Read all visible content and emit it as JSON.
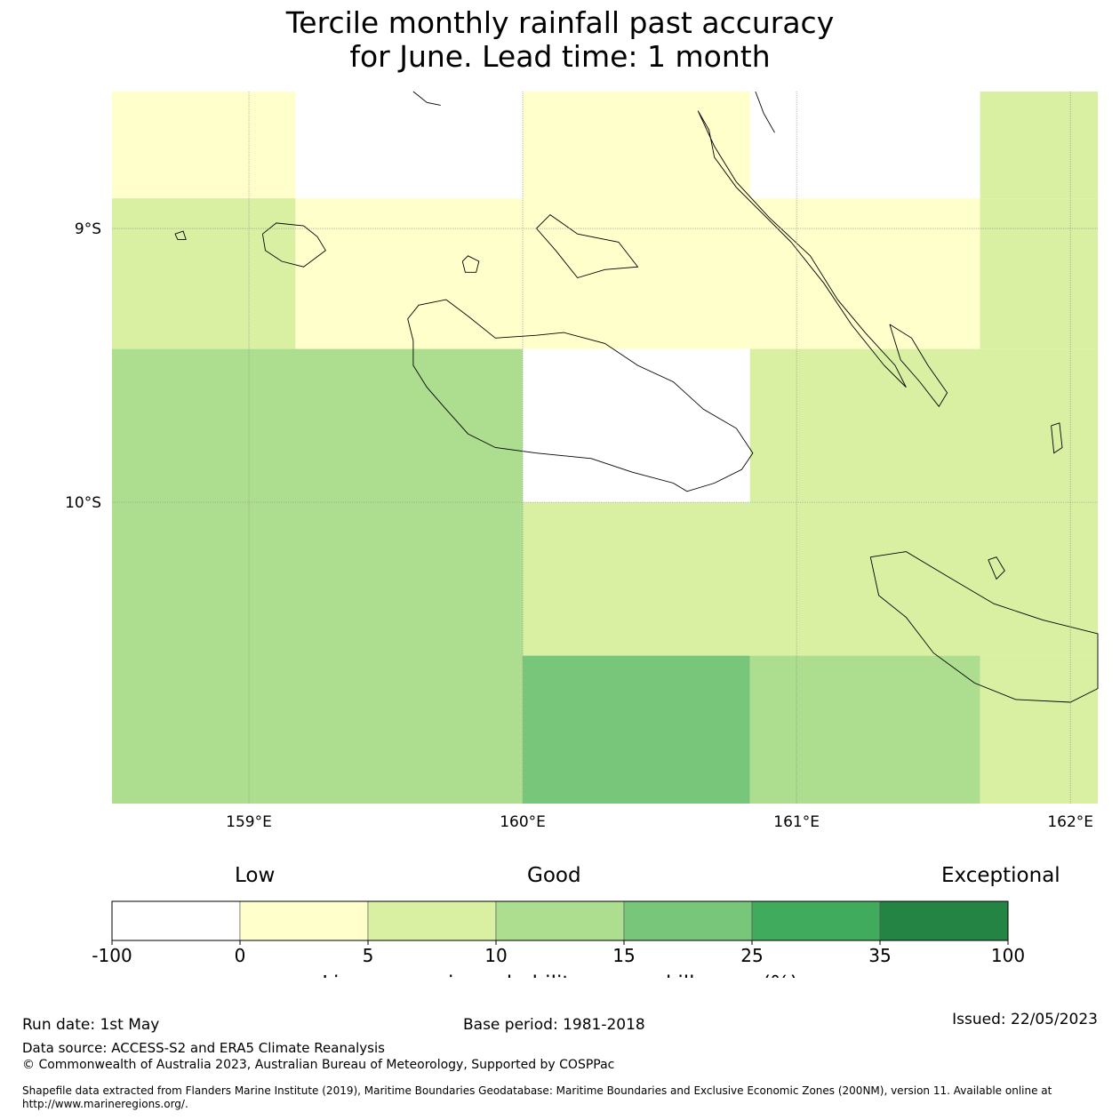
{
  "title_line1": "Tercile monthly rainfall past accuracy",
  "title_line2": "for June. Lead time: 1 month",
  "map": {
    "lon_range": [
      158.5,
      162.1
    ],
    "lat_range": [
      -11.1,
      -8.5
    ],
    "lon_ticks": [
      {
        "value": 159,
        "label": "159°E"
      },
      {
        "value": 160,
        "label": "160°E"
      },
      {
        "value": 161,
        "label": "161°E"
      },
      {
        "value": 162,
        "label": "162°E"
      }
    ],
    "lat_ticks": [
      {
        "value": -9,
        "label": "9°S"
      },
      {
        "value": -10,
        "label": "10°S"
      }
    ],
    "grid_cells": [
      {
        "lon0": 158.5,
        "lon1": 159.17,
        "lat0": -8.5,
        "lat1": -8.89,
        "class": 1
      },
      {
        "lon0": 159.17,
        "lon1": 160.0,
        "lat0": -8.5,
        "lat1": -8.89,
        "class": 0
      },
      {
        "lon0": 160.0,
        "lon1": 160.83,
        "lat0": -8.5,
        "lat1": -8.89,
        "class": 1
      },
      {
        "lon0": 160.83,
        "lon1": 161.67,
        "lat0": -8.5,
        "lat1": -8.89,
        "class": 0
      },
      {
        "lon0": 161.67,
        "lon1": 162.1,
        "lat0": -8.5,
        "lat1": -8.89,
        "class": 2
      },
      {
        "lon0": 158.5,
        "lon1": 159.17,
        "lat0": -8.89,
        "lat1": -9.44,
        "class": 2
      },
      {
        "lon0": 159.17,
        "lon1": 161.67,
        "lat0": -8.89,
        "lat1": -9.44,
        "class": 1
      },
      {
        "lon0": 161.67,
        "lon1": 162.1,
        "lat0": -8.89,
        "lat1": -9.44,
        "class": 2
      },
      {
        "lon0": 158.5,
        "lon1": 160.0,
        "lat0": -9.44,
        "lat1": -10.0,
        "class": 3
      },
      {
        "lon0": 160.0,
        "lon1": 160.83,
        "lat0": -9.44,
        "lat1": -10.0,
        "class": 0
      },
      {
        "lon0": 160.83,
        "lon1": 162.1,
        "lat0": -9.44,
        "lat1": -10.0,
        "class": 2
      },
      {
        "lon0": 158.5,
        "lon1": 160.0,
        "lat0": -10.0,
        "lat1": -11.1,
        "class": 3
      },
      {
        "lon0": 160.0,
        "lon1": 162.1,
        "lat0": -10.0,
        "lat1": -10.56,
        "class": 2
      },
      {
        "lon0": 160.0,
        "lon1": 160.83,
        "lat0": -10.56,
        "lat1": -11.1,
        "class": 4
      },
      {
        "lon0": 160.83,
        "lon1": 161.67,
        "lat0": -10.56,
        "lat1": -11.1,
        "class": 3
      },
      {
        "lon0": 161.67,
        "lon1": 162.1,
        "lat0": -10.56,
        "lat1": -11.1,
        "class": 2
      }
    ],
    "coastlines": [
      [
        [
          159.6,
          -9.41
        ],
        [
          159.58,
          -9.33
        ],
        [
          159.62,
          -9.28
        ],
        [
          159.72,
          -9.26
        ],
        [
          159.8,
          -9.32
        ],
        [
          159.9,
          -9.4
        ],
        [
          160.05,
          -9.39
        ],
        [
          160.15,
          -9.38
        ],
        [
          160.3,
          -9.42
        ],
        [
          160.42,
          -9.5
        ],
        [
          160.55,
          -9.56
        ],
        [
          160.66,
          -9.66
        ],
        [
          160.78,
          -9.73
        ],
        [
          160.84,
          -9.82
        ],
        [
          160.8,
          -9.88
        ],
        [
          160.7,
          -9.93
        ],
        [
          160.6,
          -9.96
        ],
        [
          160.55,
          -9.93
        ],
        [
          160.4,
          -9.89
        ],
        [
          160.25,
          -9.84
        ],
        [
          160.05,
          -9.82
        ],
        [
          159.9,
          -9.8
        ],
        [
          159.8,
          -9.75
        ],
        [
          159.72,
          -9.66
        ],
        [
          159.65,
          -9.58
        ],
        [
          159.6,
          -9.5
        ],
        [
          159.6,
          -9.41
        ]
      ],
      [
        [
          160.05,
          -9.0
        ],
        [
          160.1,
          -8.95
        ],
        [
          160.2,
          -9.02
        ],
        [
          160.35,
          -9.05
        ],
        [
          160.42,
          -9.14
        ],
        [
          160.3,
          -9.15
        ],
        [
          160.2,
          -9.18
        ],
        [
          160.12,
          -9.08
        ],
        [
          160.05,
          -9.0
        ]
      ],
      [
        [
          160.64,
          -8.57
        ],
        [
          160.68,
          -8.64
        ],
        [
          160.7,
          -8.74
        ],
        [
          160.78,
          -8.85
        ],
        [
          160.88,
          -8.95
        ],
        [
          160.98,
          -9.05
        ],
        [
          161.06,
          -9.15
        ],
        [
          161.1,
          -9.2
        ],
        [
          161.2,
          -9.35
        ],
        [
          161.32,
          -9.5
        ],
        [
          161.4,
          -9.58
        ],
        [
          161.36,
          -9.5
        ],
        [
          161.25,
          -9.38
        ],
        [
          161.15,
          -9.26
        ],
        [
          161.05,
          -9.1
        ],
        [
          160.9,
          -8.96
        ],
        [
          160.78,
          -8.83
        ],
        [
          160.7,
          -8.7
        ],
        [
          160.64,
          -8.57
        ]
      ],
      [
        [
          161.34,
          -9.35
        ],
        [
          161.42,
          -9.4
        ],
        [
          161.48,
          -9.5
        ],
        [
          161.55,
          -9.6
        ],
        [
          161.52,
          -9.65
        ],
        [
          161.45,
          -9.56
        ],
        [
          161.38,
          -9.48
        ],
        [
          161.34,
          -9.35
        ]
      ],
      [
        [
          159.05,
          -9.02
        ],
        [
          159.1,
          -8.98
        ],
        [
          159.2,
          -8.99
        ],
        [
          159.25,
          -9.03
        ],
        [
          159.28,
          -9.08
        ],
        [
          159.2,
          -9.14
        ],
        [
          159.12,
          -9.12
        ],
        [
          159.06,
          -9.08
        ],
        [
          159.05,
          -9.02
        ]
      ],
      [
        [
          159.78,
          -9.12
        ],
        [
          159.8,
          -9.1
        ],
        [
          159.84,
          -9.12
        ],
        [
          159.83,
          -9.16
        ],
        [
          159.79,
          -9.16
        ],
        [
          159.78,
          -9.12
        ]
      ],
      [
        [
          158.73,
          -9.02
        ],
        [
          158.76,
          -9.01
        ],
        [
          158.77,
          -9.04
        ],
        [
          158.74,
          -9.04
        ],
        [
          158.73,
          -9.02
        ]
      ],
      [
        [
          161.27,
          -10.2
        ],
        [
          161.4,
          -10.18
        ],
        [
          161.55,
          -10.27
        ],
        [
          161.72,
          -10.37
        ],
        [
          161.9,
          -10.43
        ],
        [
          162.1,
          -10.48
        ],
        [
          162.1,
          -10.68
        ],
        [
          162.0,
          -10.73
        ],
        [
          161.8,
          -10.72
        ],
        [
          161.65,
          -10.66
        ],
        [
          161.5,
          -10.55
        ],
        [
          161.4,
          -10.42
        ],
        [
          161.3,
          -10.34
        ],
        [
          161.27,
          -10.2
        ]
      ],
      [
        [
          161.7,
          -10.21
        ],
        [
          161.73,
          -10.2
        ],
        [
          161.76,
          -10.25
        ],
        [
          161.73,
          -10.28
        ],
        [
          161.7,
          -10.21
        ]
      ],
      [
        [
          161.93,
          -9.72
        ],
        [
          161.96,
          -9.71
        ],
        [
          161.97,
          -9.8
        ],
        [
          161.94,
          -9.82
        ],
        [
          161.93,
          -9.72
        ]
      ],
      [
        [
          159.6,
          -8.5
        ],
        [
          159.65,
          -8.54
        ],
        [
          159.7,
          -8.55
        ]
      ],
      [
        [
          160.85,
          -8.5
        ],
        [
          160.88,
          -8.58
        ],
        [
          160.92,
          -8.65
        ]
      ]
    ]
  },
  "colorbar": {
    "label_low": "Low",
    "label_good": "Good",
    "label_exceptional": "Exceptional",
    "colors": [
      "#ffffff",
      "#ffffcc",
      "#d9f0a3",
      "#addd8e",
      "#78c679",
      "#41ab5d",
      "#238443"
    ],
    "ticks": [
      "-100",
      "0",
      "5",
      "10",
      "15",
      "25",
      "35",
      "100"
    ],
    "title": "Linear error in probability space skill score (%)"
  },
  "footer": {
    "run_date": "Run date: 1st May",
    "base_period": "Base period: 1981-2018",
    "issued": "Issued: 22/05/2023",
    "data_source": "Data source: ACCESS-S2 and ERA5 Climate Reanalysis",
    "copyright": "© Commonwealth of Australia 2023, Australian Bureau of Meteorology, Supported by COSPPac",
    "shapefile": "Shapefile data extracted from Flanders Marine Institute (2019), Maritime Boundaries Geodatabase: Maritime Boundaries and Exclusive Economic Zones (200NM), version 11. Available online at http://www.marineregions.org/."
  }
}
